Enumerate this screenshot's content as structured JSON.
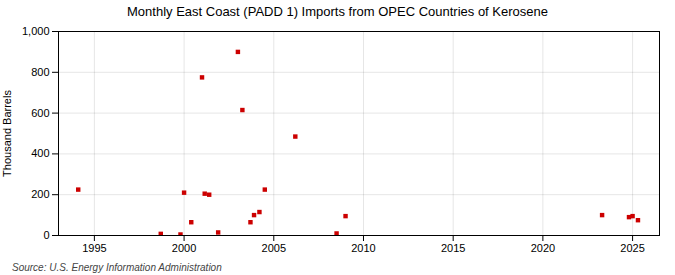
{
  "chart_data": {
    "type": "scatter",
    "title": "Monthly East Coast (PADD 1) Imports from OPEC Countries of Kerosene",
    "ylabel": "Thousand Barrels",
    "annotations": [
      "Source: U.S. Energy Information Administration"
    ],
    "x": [
      1994.1,
      1998.7,
      1999.8,
      2000.0,
      2000.4,
      2001.0,
      2001.15,
      2001.4,
      2001.9,
      2003.0,
      2003.25,
      2003.7,
      2003.9,
      2004.2,
      2004.5,
      2006.2,
      2008.5,
      2009.0,
      2023.3,
      2024.8,
      2025.0,
      2025.3
    ],
    "values": [
      225,
      8,
      5,
      210,
      65,
      775,
      205,
      200,
      15,
      900,
      615,
      65,
      100,
      115,
      225,
      485,
      10,
      95,
      100,
      90,
      95,
      75
    ],
    "color": "#cc0000",
    "marker": "square",
    "xlim": [
      1993.0,
      2026.5
    ],
    "ylim": [
      0,
      1000
    ],
    "xticks": [
      1995,
      2000,
      2005,
      2010,
      2015,
      2020,
      2025
    ],
    "yticks": [
      0,
      200,
      400,
      600,
      800,
      {
        "value": 1000,
        "label": "1,000"
      }
    ],
    "grid": true
  }
}
